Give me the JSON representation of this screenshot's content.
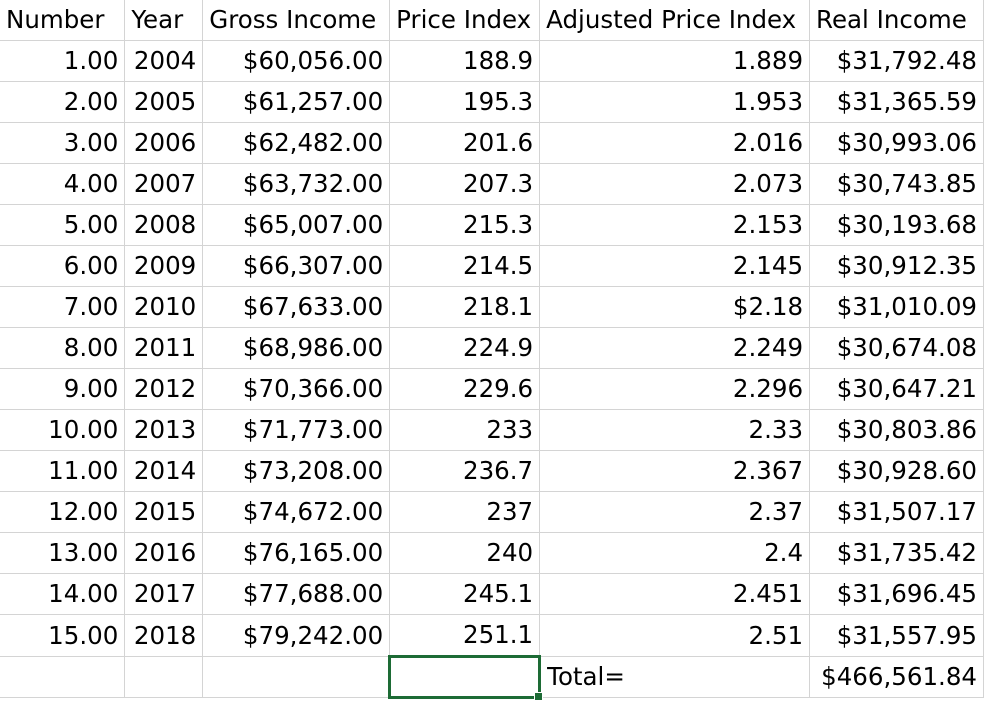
{
  "headers": [
    "Number",
    "Year",
    "Gross Income",
    "Price Index",
    "Adjusted Price Index",
    "Real Income"
  ],
  "rows": [
    [
      "1.00",
      "2004",
      "$60,056.00",
      "188.9",
      "1.889",
      "$31,792.48"
    ],
    [
      "2.00",
      "2005",
      "$61,257.00",
      "195.3",
      "1.953",
      "$31,365.59"
    ],
    [
      "3.00",
      "2006",
      "$62,482.00",
      "201.6",
      "2.016",
      "$30,993.06"
    ],
    [
      "4.00",
      "2007",
      "$63,732.00",
      "207.3",
      "2.073",
      "$30,743.85"
    ],
    [
      "5.00",
      "2008",
      "$65,007.00",
      "215.3",
      "2.153",
      "$30,193.68"
    ],
    [
      "6.00",
      "2009",
      "$66,307.00",
      "214.5",
      "2.145",
      "$30,912.35"
    ],
    [
      "7.00",
      "2010",
      "$67,633.00",
      "218.1",
      "$2.18",
      "$31,010.09"
    ],
    [
      "8.00",
      "2011",
      "$68,986.00",
      "224.9",
      "2.249",
      "$30,674.08"
    ],
    [
      "9.00",
      "2012",
      "$70,366.00",
      "229.6",
      "2.296",
      "$30,647.21"
    ],
    [
      "10.00",
      "2013",
      "$71,773.00",
      "233",
      "2.33",
      "$30,803.86"
    ],
    [
      "11.00",
      "2014",
      "$73,208.00",
      "236.7",
      "2.367",
      "$30,928.60"
    ],
    [
      "12.00",
      "2015",
      "$74,672.00",
      "237",
      "2.37",
      "$31,507.17"
    ],
    [
      "13.00",
      "2016",
      "$76,165.00",
      "240",
      "2.4",
      "$31,735.42"
    ],
    [
      "14.00",
      "2017",
      "$77,688.00",
      "245.1",
      "2.451",
      "$31,696.45"
    ],
    [
      "15.00",
      "2018",
      "$79,242.00",
      "251.1",
      "2.51",
      "$31,557.95"
    ]
  ],
  "total_row": {
    "label": "Total=",
    "value": "$466,561.84"
  },
  "colors": {
    "gridline": "#d4d4d4",
    "selection": "#1d6b35"
  }
}
